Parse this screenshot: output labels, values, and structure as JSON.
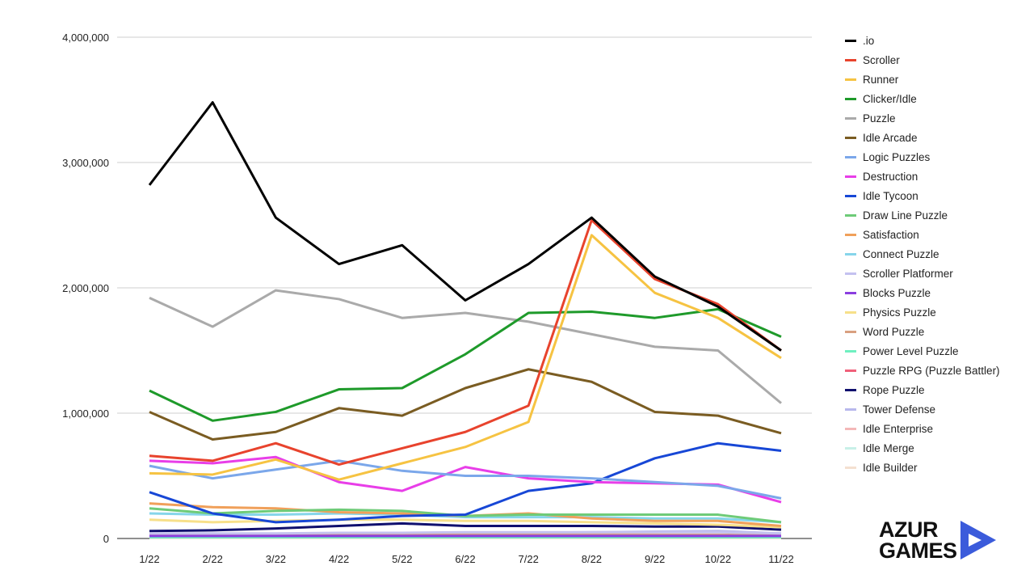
{
  "chart_data": {
    "type": "line",
    "title": "",
    "xlabel": "",
    "ylabel": "",
    "ylim": [
      0,
      4000000
    ],
    "yticks": [
      "0",
      "1,000,000",
      "2,000,000",
      "3,000,000",
      "4,000,000"
    ],
    "ytick_values": [
      0,
      1000000,
      2000000,
      3000000,
      4000000
    ],
    "grid": true,
    "legend_position": "right",
    "categories": [
      "1/22",
      "2/22",
      "3/22",
      "4/22",
      "5/22",
      "6/22",
      "7/22",
      "8/22",
      "9/22",
      "10/22",
      "11/22"
    ],
    "series": [
      {
        "name": ".io",
        "color": "#000000",
        "values": [
          2820000,
          3480000,
          2560000,
          2190000,
          2340000,
          1900000,
          2190000,
          2560000,
          2090000,
          1850000,
          1500000
        ]
      },
      {
        "name": "Scroller",
        "color": "#e8432d",
        "values": [
          660000,
          620000,
          760000,
          590000,
          720000,
          850000,
          1060000,
          2540000,
          2070000,
          1870000,
          1500000
        ]
      },
      {
        "name": "Runner",
        "color": "#f6c342",
        "values": [
          520000,
          510000,
          630000,
          470000,
          600000,
          730000,
          930000,
          2420000,
          1960000,
          1760000,
          1440000
        ]
      },
      {
        "name": "Clicker/Idle",
        "color": "#1e9a2a",
        "values": [
          1180000,
          940000,
          1010000,
          1190000,
          1200000,
          1470000,
          1800000,
          1810000,
          1760000,
          1830000,
          1610000
        ]
      },
      {
        "name": "Puzzle",
        "color": "#aaaaaa",
        "values": [
          1920000,
          1690000,
          1980000,
          1910000,
          1760000,
          1800000,
          1730000,
          1630000,
          1530000,
          1500000,
          1080000
        ]
      },
      {
        "name": "Idle Arcade",
        "color": "#7a5c22",
        "values": [
          1010000,
          790000,
          850000,
          1040000,
          980000,
          1200000,
          1350000,
          1250000,
          1010000,
          980000,
          840000
        ]
      },
      {
        "name": "Logic Puzzles",
        "color": "#7ba7ea",
        "values": [
          580000,
          480000,
          550000,
          620000,
          540000,
          500000,
          500000,
          480000,
          450000,
          420000,
          320000
        ]
      },
      {
        "name": "Destruction",
        "color": "#e83ee8",
        "values": [
          620000,
          600000,
          650000,
          450000,
          380000,
          570000,
          480000,
          450000,
          440000,
          430000,
          290000
        ]
      },
      {
        "name": "Idle Tycoon",
        "color": "#1747d6",
        "values": [
          370000,
          200000,
          130000,
          150000,
          180000,
          190000,
          380000,
          440000,
          640000,
          760000,
          700000
        ]
      },
      {
        "name": "Draw Line Puzzle",
        "color": "#6ecb78",
        "values": [
          240000,
          200000,
          220000,
          230000,
          220000,
          180000,
          190000,
          190000,
          190000,
          190000,
          130000
        ]
      },
      {
        "name": "Satisfaction",
        "color": "#f0a05a",
        "values": [
          280000,
          250000,
          240000,
          210000,
          200000,
          180000,
          200000,
          160000,
          140000,
          140000,
          100000
        ]
      },
      {
        "name": "Connect Puzzle",
        "color": "#86d5ea",
        "values": [
          200000,
          190000,
          190000,
          200000,
          190000,
          170000,
          170000,
          170000,
          160000,
          160000,
          130000
        ]
      },
      {
        "name": "Scroller Platformer",
        "color": "#c4c1f0",
        "values": [
          40000,
          40000,
          40000,
          45000,
          45000,
          50000,
          50000,
          50000,
          50000,
          50000,
          40000
        ]
      },
      {
        "name": "Blocks Puzzle",
        "color": "#8b3ee0",
        "values": [
          20000,
          20000,
          20000,
          20000,
          20000,
          20000,
          20000,
          20000,
          20000,
          20000,
          20000
        ]
      },
      {
        "name": "Physics Puzzle",
        "color": "#f7e08a",
        "values": [
          150000,
          130000,
          140000,
          150000,
          150000,
          140000,
          140000,
          130000,
          120000,
          110000,
          90000
        ]
      },
      {
        "name": "Word Puzzle",
        "color": "#d9a080",
        "values": [
          30000,
          30000,
          30000,
          30000,
          30000,
          30000,
          30000,
          30000,
          30000,
          30000,
          25000
        ]
      },
      {
        "name": "Power Level Puzzle",
        "color": "#6ff0c0",
        "values": [
          10000,
          10000,
          10000,
          10000,
          10000,
          10000,
          10000,
          10000,
          10000,
          10000,
          10000
        ]
      },
      {
        "name": "Puzzle RPG (Puzzle Battler)",
        "color": "#f0607a",
        "values": [
          15000,
          15000,
          15000,
          15000,
          15000,
          15000,
          15000,
          15000,
          15000,
          15000,
          15000
        ]
      },
      {
        "name": "Rope Puzzle",
        "color": "#10106e",
        "values": [
          60000,
          65000,
          80000,
          100000,
          120000,
          100000,
          100000,
          100000,
          95000,
          95000,
          70000
        ]
      },
      {
        "name": "Tower Defense",
        "color": "#b8b8ec",
        "values": [
          30000,
          30000,
          25000,
          30000,
          35000,
          40000,
          45000,
          50000,
          55000,
          60000,
          40000
        ]
      },
      {
        "name": "Idle Enterprise",
        "color": "#f4b8b8",
        "values": [
          20000,
          20000,
          20000,
          25000,
          30000,
          35000,
          40000,
          45000,
          50000,
          55000,
          30000
        ]
      },
      {
        "name": "Idle Merge",
        "color": "#c8f0e8",
        "values": [
          10000,
          10000,
          10000,
          10000,
          10000,
          10000,
          10000,
          10000,
          10000,
          10000,
          10000
        ]
      },
      {
        "name": "Idle Builder",
        "color": "#f4e0d0",
        "values": [
          5000,
          5000,
          5000,
          5000,
          5000,
          5000,
          5000,
          5000,
          5000,
          5000,
          5000
        ]
      }
    ]
  },
  "logo": {
    "line1": "AZUR",
    "line2": "GAMES",
    "color": "#3b5bdb"
  }
}
